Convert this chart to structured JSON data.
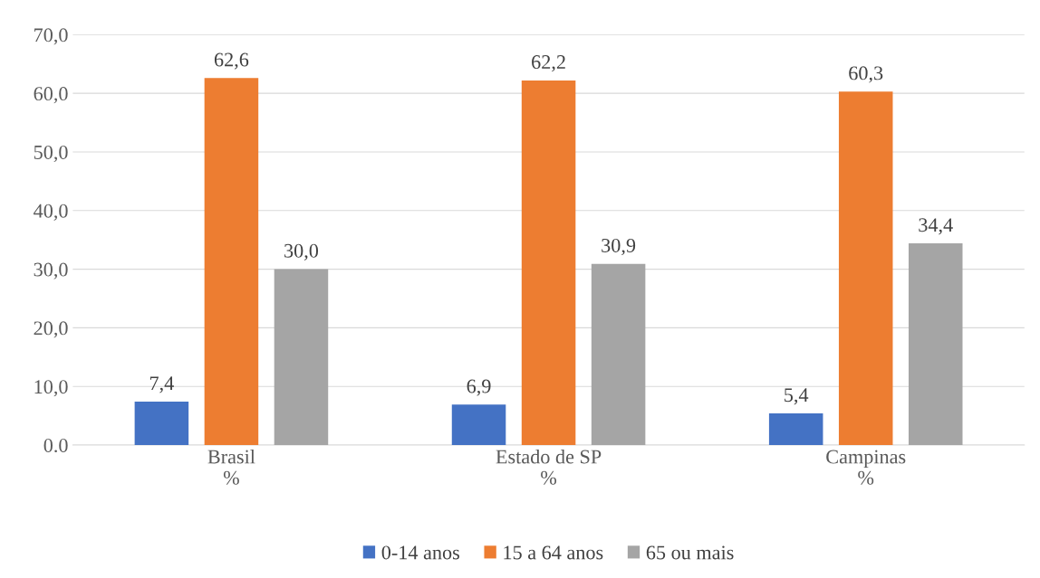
{
  "chart_data": {
    "type": "bar",
    "categories": [
      "Brasil\n%",
      "Estado de SP\n%",
      "Campinas\n%"
    ],
    "series": [
      {
        "name": "0-14 anos",
        "color": "#4472c4",
        "values": [
          7.4,
          6.9,
          5.4
        ],
        "value_labels": [
          "7,4",
          "6,9",
          "5,4"
        ]
      },
      {
        "name": "15 a 64 anos",
        "color": "#ed7d31",
        "values": [
          62.6,
          62.2,
          60.3
        ],
        "value_labels": [
          "62,6",
          "62,2",
          "60,3"
        ]
      },
      {
        "name": "65 ou mais",
        "color": "#a5a5a5",
        "values": [
          30.0,
          30.9,
          34.4
        ],
        "value_labels": [
          "30,0",
          "30,9",
          "34,4"
        ]
      }
    ],
    "ylim": [
      0,
      70
    ],
    "yticks": [
      {
        "value": 0,
        "label": "0.0"
      },
      {
        "value": 10,
        "label": "10,0"
      },
      {
        "value": 20,
        "label": "20,0"
      },
      {
        "value": 30,
        "label": "30,0"
      },
      {
        "value": 40,
        "label": "40,0"
      },
      {
        "value": 50,
        "label": "50,0"
      },
      {
        "value": 60,
        "label": "60,0"
      },
      {
        "value": 70,
        "label": "70,0"
      }
    ],
    "grid": "y",
    "legend": "bottom"
  }
}
